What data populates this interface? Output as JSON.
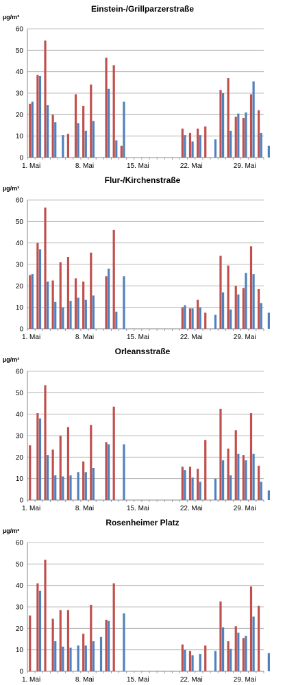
{
  "unit": "µg/m³",
  "chart_data": [
    {
      "type": "bar",
      "title": "Einstein-/Grillparzerstraße",
      "ylabel": "µg/m³",
      "ylim": [
        0,
        60
      ],
      "yticks": [
        0,
        10,
        20,
        30,
        40,
        50,
        60
      ],
      "xticks": [
        {
          "label": "1. Mai",
          "day": 1
        },
        {
          "label": "8. Mai",
          "day": 8
        },
        {
          "label": "15. Mai",
          "day": 15
        },
        {
          "label": "22. Mai",
          "day": 22
        },
        {
          "label": "29. Mai",
          "day": 29
        }
      ],
      "grid": true,
      "colors": [
        "#c0504d",
        "#4f81bd"
      ],
      "series": [
        {
          "values": [
            25,
            38.5,
            54.5,
            20,
            null,
            11,
            29.5,
            24,
            34,
            null,
            46.5,
            43,
            5.5,
            null,
            null,
            null,
            null,
            null,
            null,
            null,
            13.5,
            11.5,
            13.5,
            14.5,
            null,
            31.5,
            37,
            19,
            18.5,
            29.5,
            22
          ]
        },
        {
          "values": [
            26,
            38,
            24.5,
            16.5,
            10.5,
            null,
            16,
            12.5,
            17,
            null,
            32,
            8,
            26,
            null,
            null,
            null,
            null,
            null,
            null,
            null,
            10.5,
            7.5,
            10.5,
            null,
            8.5,
            30,
            12.5,
            20.5,
            21,
            35.5,
            11.5,
            5.5
          ]
        }
      ]
    },
    {
      "type": "bar",
      "title": "Flur-/Kirchenstraße",
      "ylabel": "µg/m³",
      "ylim": [
        0,
        60
      ],
      "yticks": [
        0,
        10,
        20,
        30,
        40,
        50,
        60
      ],
      "xticks": [
        {
          "label": "1. Mai",
          "day": 1
        },
        {
          "label": "8. Mai",
          "day": 8
        },
        {
          "label": "15. Mai",
          "day": 15
        },
        {
          "label": "22. Mai",
          "day": 22
        },
        {
          "label": "29. Mai",
          "day": 29
        }
      ],
      "grid": true,
      "colors": [
        "#c0504d",
        "#4f81bd"
      ],
      "series": [
        {
          "values": [
            25,
            40,
            56.5,
            22.5,
            31,
            33.5,
            23.5,
            22,
            35.5,
            null,
            24.5,
            46,
            null,
            null,
            null,
            null,
            null,
            null,
            null,
            null,
            10,
            9.5,
            13.5,
            7.5,
            null,
            34,
            29.5,
            20,
            19,
            38.5,
            18.5
          ]
        },
        {
          "values": [
            25.5,
            37,
            22,
            12.5,
            10,
            13,
            14.5,
            13.5,
            15.5,
            null,
            28,
            8,
            24.5,
            null,
            null,
            null,
            null,
            null,
            null,
            null,
            11,
            9.5,
            10,
            null,
            6.5,
            17,
            9,
            16,
            26,
            25.5,
            12,
            7.5
          ]
        }
      ]
    },
    {
      "type": "bar",
      "title": "Orleansstraße",
      "ylabel": "µg/m³",
      "ylim": [
        0,
        60
      ],
      "yticks": [
        0,
        10,
        20,
        30,
        40,
        50,
        60
      ],
      "xticks": [
        {
          "label": "1. Mai",
          "day": 1
        },
        {
          "label": "8. Mai",
          "day": 8
        },
        {
          "label": "15. Mai",
          "day": 15
        },
        {
          "label": "22. Mai",
          "day": 22
        },
        {
          "label": "29. Mai",
          "day": 29
        }
      ],
      "grid": true,
      "colors": [
        "#c0504d",
        "#4f81bd"
      ],
      "series": [
        {
          "values": [
            25.5,
            40.5,
            53.5,
            23.5,
            30,
            34,
            null,
            18,
            35,
            null,
            27,
            43.5,
            null,
            null,
            null,
            null,
            null,
            null,
            null,
            null,
            15.5,
            15.5,
            14.5,
            28,
            null,
            42.5,
            24,
            32.5,
            21,
            40.5,
            16
          ]
        },
        {
          "values": [
            null,
            38,
            21,
            11.5,
            11,
            11.5,
            13,
            13,
            15,
            null,
            26,
            null,
            26,
            null,
            null,
            null,
            null,
            null,
            null,
            null,
            14,
            10.5,
            8.5,
            null,
            10,
            18.5,
            11.5,
            21.5,
            18.5,
            21.5,
            8.5,
            4.5
          ]
        }
      ]
    },
    {
      "type": "bar",
      "title": "Rosenheimer Platz",
      "ylabel": "µg/m³",
      "ylim": [
        0,
        60
      ],
      "yticks": [
        0,
        10,
        20,
        30,
        40,
        50,
        60
      ],
      "xticks": [
        {
          "label": "1. Mai",
          "day": 1
        },
        {
          "label": "8. Mai",
          "day": 8
        },
        {
          "label": "15. Mai",
          "day": 15
        },
        {
          "label": "22. Mai",
          "day": 22
        },
        {
          "label": "29. Mai",
          "day": 29
        }
      ],
      "grid": true,
      "colors": [
        "#c0504d",
        "#4f81bd"
      ],
      "series": [
        {
          "values": [
            26,
            41,
            52,
            24.5,
            28.5,
            28.5,
            null,
            17.5,
            31,
            null,
            24,
            41,
            null,
            null,
            null,
            null,
            null,
            null,
            null,
            null,
            12.5,
            9.5,
            null,
            12,
            null,
            32.5,
            14,
            21,
            15.5,
            39.5,
            30.5
          ]
        },
        {
          "values": [
            null,
            37.5,
            null,
            14,
            11.5,
            11,
            12,
            12,
            14,
            16,
            23.5,
            null,
            27,
            null,
            null,
            null,
            null,
            null,
            null,
            null,
            10,
            7.5,
            8,
            null,
            9.5,
            20.5,
            10.5,
            18,
            16.5,
            25.5,
            null,
            8.5
          ]
        }
      ]
    }
  ]
}
